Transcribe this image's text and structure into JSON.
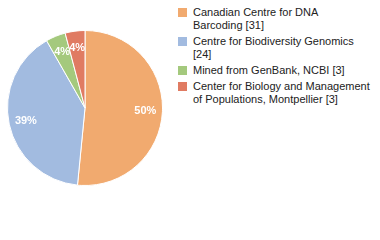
{
  "chart_data": {
    "type": "pie",
    "categories": [
      "Canadian Centre for DNA Barcoding [31]",
      "Centre for Biodiversity Genomics [24]",
      "Mined from GenBank, NCBI [3]",
      "Center for Biology and Management of Populations, Montpellier [3]"
    ],
    "values": [
      50,
      39,
      4,
      4
    ],
    "value_labels": [
      "50%",
      "39%",
      "4%",
      "4%"
    ],
    "colors": [
      "#f1aa6f",
      "#a2bbe0",
      "#a4c97d",
      "#e07b62"
    ],
    "data_labels": true,
    "legend": "right"
  }
}
